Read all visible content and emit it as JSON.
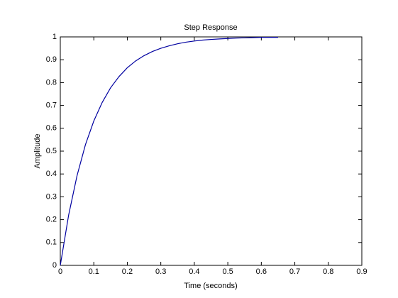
{
  "chart_data": {
    "type": "line",
    "title": "Step Response",
    "x_label": "Time (seconds)",
    "y_label": "Amplitude",
    "x": [
      0,
      0.025,
      0.05,
      0.075,
      0.1,
      0.125,
      0.15,
      0.175,
      0.2,
      0.225,
      0.25,
      0.275,
      0.3,
      0.325,
      0.35,
      0.375,
      0.4,
      0.425,
      0.45,
      0.475,
      0.5,
      0.525,
      0.55,
      0.575,
      0.6,
      0.625,
      0.65
    ],
    "values": [
      0,
      0.221,
      0.393,
      0.528,
      0.632,
      0.713,
      0.777,
      0.826,
      0.865,
      0.895,
      0.918,
      0.936,
      0.95,
      0.961,
      0.97,
      0.977,
      0.982,
      0.986,
      0.989,
      0.991,
      0.993,
      0.995,
      0.996,
      0.997,
      0.998,
      0.998,
      0.998
    ],
    "color": "#0000a0",
    "xlim": [
      0,
      0.9
    ],
    "xticks": [
      0,
      0.1,
      0.2,
      0.3,
      0.4,
      0.5,
      0.6,
      0.7,
      0.8,
      0.9
    ],
    "ylim": [
      0,
      1
    ],
    "yticks": [
      0,
      0.1,
      0.2,
      0.3,
      0.4,
      0.5,
      0.6,
      0.7,
      0.8,
      0.9,
      1
    ],
    "grid": false
  }
}
